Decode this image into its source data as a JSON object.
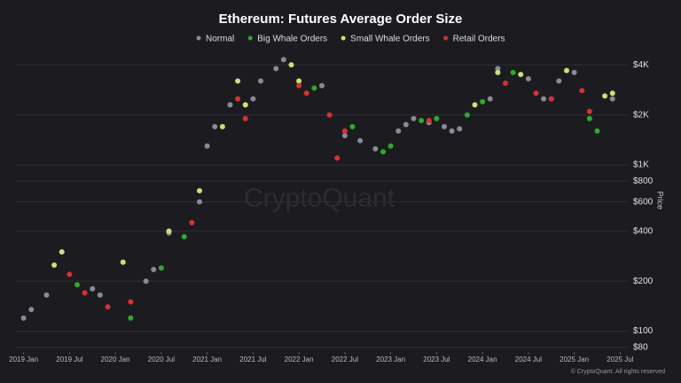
{
  "chart_data": {
    "type": "scatter",
    "title": "Ethereum: Futures Average Order Size",
    "y_label": "Price",
    "watermark": "CryptoQuant",
    "footer": "© CryptoQuant. All rights reserved",
    "log_y": true,
    "xlim": [
      "2018-12",
      "2025-08"
    ],
    "ylim": [
      75,
      5000
    ],
    "xticks": [
      {
        "value": "2019-01",
        "label": "2019 Jan"
      },
      {
        "value": "2019-07",
        "label": "2019 Jul"
      },
      {
        "value": "2020-01",
        "label": "2020 Jan"
      },
      {
        "value": "2020-07",
        "label": "2020 Jul"
      },
      {
        "value": "2021-01",
        "label": "2021 Jan"
      },
      {
        "value": "2021-07",
        "label": "2021 Jul"
      },
      {
        "value": "2022-01",
        "label": "2022 Jan"
      },
      {
        "value": "2022-07",
        "label": "2022 Jul"
      },
      {
        "value": "2023-01",
        "label": "2023 Jan"
      },
      {
        "value": "2023-07",
        "label": "2023 Jul"
      },
      {
        "value": "2024-01",
        "label": "2024 Jan"
      },
      {
        "value": "2024-07",
        "label": "2024 Jul"
      },
      {
        "value": "2025-01",
        "label": "2025 Jan"
      },
      {
        "value": "2025-07",
        "label": "2025 Jul"
      }
    ],
    "yticks": [
      {
        "value": 80,
        "label": "$80"
      },
      {
        "value": 100,
        "label": "$100"
      },
      {
        "value": 200,
        "label": "$200"
      },
      {
        "value": 400,
        "label": "$400"
      },
      {
        "value": 600,
        "label": "$600"
      },
      {
        "value": 800,
        "label": "$800"
      },
      {
        "value": 1000,
        "label": "$1K"
      },
      {
        "value": 2000,
        "label": "$2K"
      },
      {
        "value": 4000,
        "label": "$4K"
      }
    ],
    "grid": true,
    "series": [
      {
        "name": "Normal",
        "color": "#8a8a96",
        "x": [
          "2019-01",
          "2019-02",
          "2019-04",
          "2019-10",
          "2019-11",
          "2020-05",
          "2020-06",
          "2020-08",
          "2020-12",
          "2021-01",
          "2021-02",
          "2021-04",
          "2021-07",
          "2021-08",
          "2021-10",
          "2021-11",
          "2022-04",
          "2022-07",
          "2022-09",
          "2022-11",
          "2023-02",
          "2023-03",
          "2023-04",
          "2023-06",
          "2023-08",
          "2023-09",
          "2023-10",
          "2024-02",
          "2024-03",
          "2024-07",
          "2024-09",
          "2024-10",
          "2024-11",
          "2025-01",
          "2025-06"
        ],
        "values": [
          120,
          135,
          165,
          180,
          165,
          200,
          235,
          390,
          600,
          1300,
          1700,
          2300,
          2500,
          3200,
          3800,
          4300,
          3000,
          1500,
          1400,
          1250,
          1600,
          1750,
          1900,
          1800,
          1700,
          1600,
          1650,
          2500,
          3800,
          3300,
          2500,
          2500,
          3200,
          3600,
          2500
        ]
      },
      {
        "name": "Big Whale Orders",
        "color": "#2fa82f",
        "x": [
          "2019-08",
          "2020-03",
          "2020-07",
          "2020-10",
          "2021-06",
          "2022-03",
          "2022-08",
          "2022-12",
          "2023-01",
          "2023-05",
          "2023-07",
          "2023-11",
          "2024-01",
          "2024-05",
          "2025-03",
          "2025-04"
        ],
        "values": [
          190,
          120,
          240,
          370,
          2300,
          2900,
          1700,
          1200,
          1300,
          1850,
          1900,
          2000,
          2400,
          3600,
          1900,
          1600
        ]
      },
      {
        "name": "Small Whale Orders",
        "color": "#c8e07a",
        "x": [
          "2019-05",
          "2019-06",
          "2020-02",
          "2020-08",
          "2020-12",
          "2021-03",
          "2021-05",
          "2021-06",
          "2021-12",
          "2022-01",
          "2023-12",
          "2024-03",
          "2024-06",
          "2024-12",
          "2025-05",
          "2025-06"
        ],
        "values": [
          250,
          300,
          260,
          400,
          700,
          1700,
          3200,
          2300,
          4000,
          3200,
          2300,
          3600,
          3500,
          3700,
          2600,
          2700
        ]
      },
      {
        "name": "Retail Orders",
        "color": "#d63232",
        "x": [
          "2019-07",
          "2019-09",
          "2019-12",
          "2020-03",
          "2020-11",
          "2021-05",
          "2021-06",
          "2022-01",
          "2022-02",
          "2022-05",
          "2022-06",
          "2022-07",
          "2023-06",
          "2024-04",
          "2024-08",
          "2024-10",
          "2025-02",
          "2025-03"
        ],
        "values": [
          220,
          170,
          140,
          150,
          450,
          2500,
          1900,
          3000,
          2700,
          2000,
          1100,
          1600,
          1850,
          3100,
          2700,
          2500,
          2800,
          2100
        ]
      }
    ]
  }
}
